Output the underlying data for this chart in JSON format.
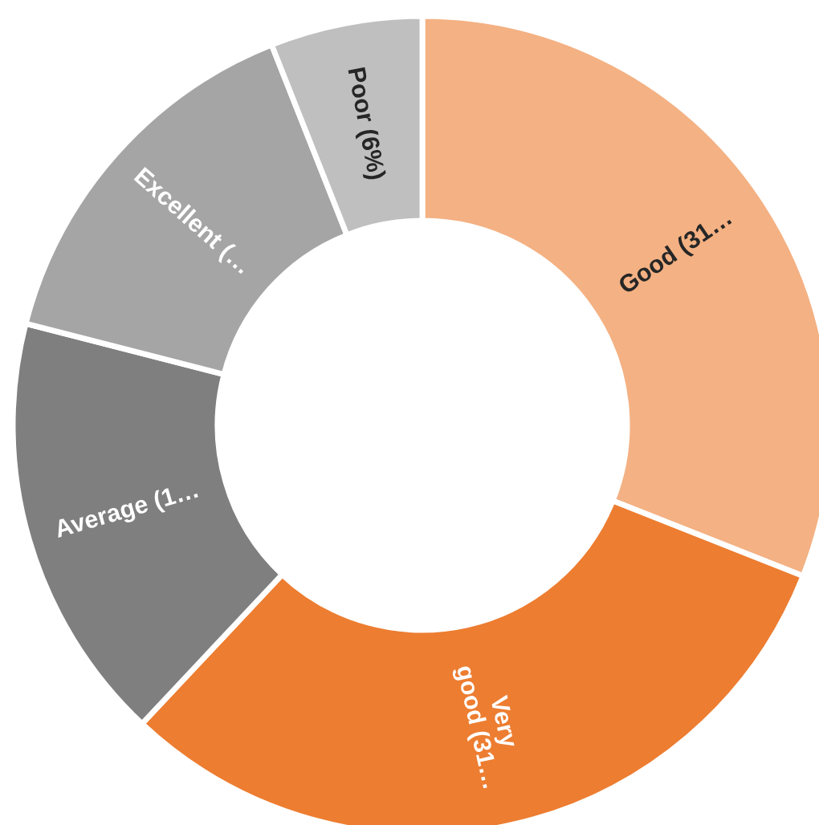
{
  "chart_data": {
    "type": "donut",
    "categories": [
      "Good (31…",
      "Very\ngood (31…",
      "Average (1…",
      "Excellent (…",
      "Poor (6%)"
    ],
    "values": [
      31,
      31,
      17,
      15,
      6
    ],
    "colors": [
      "#f4b183",
      "#ed7d31",
      "#7f7f7f",
      "#a5a5a5",
      "#bfbfbf"
    ],
    "legend": false
  }
}
